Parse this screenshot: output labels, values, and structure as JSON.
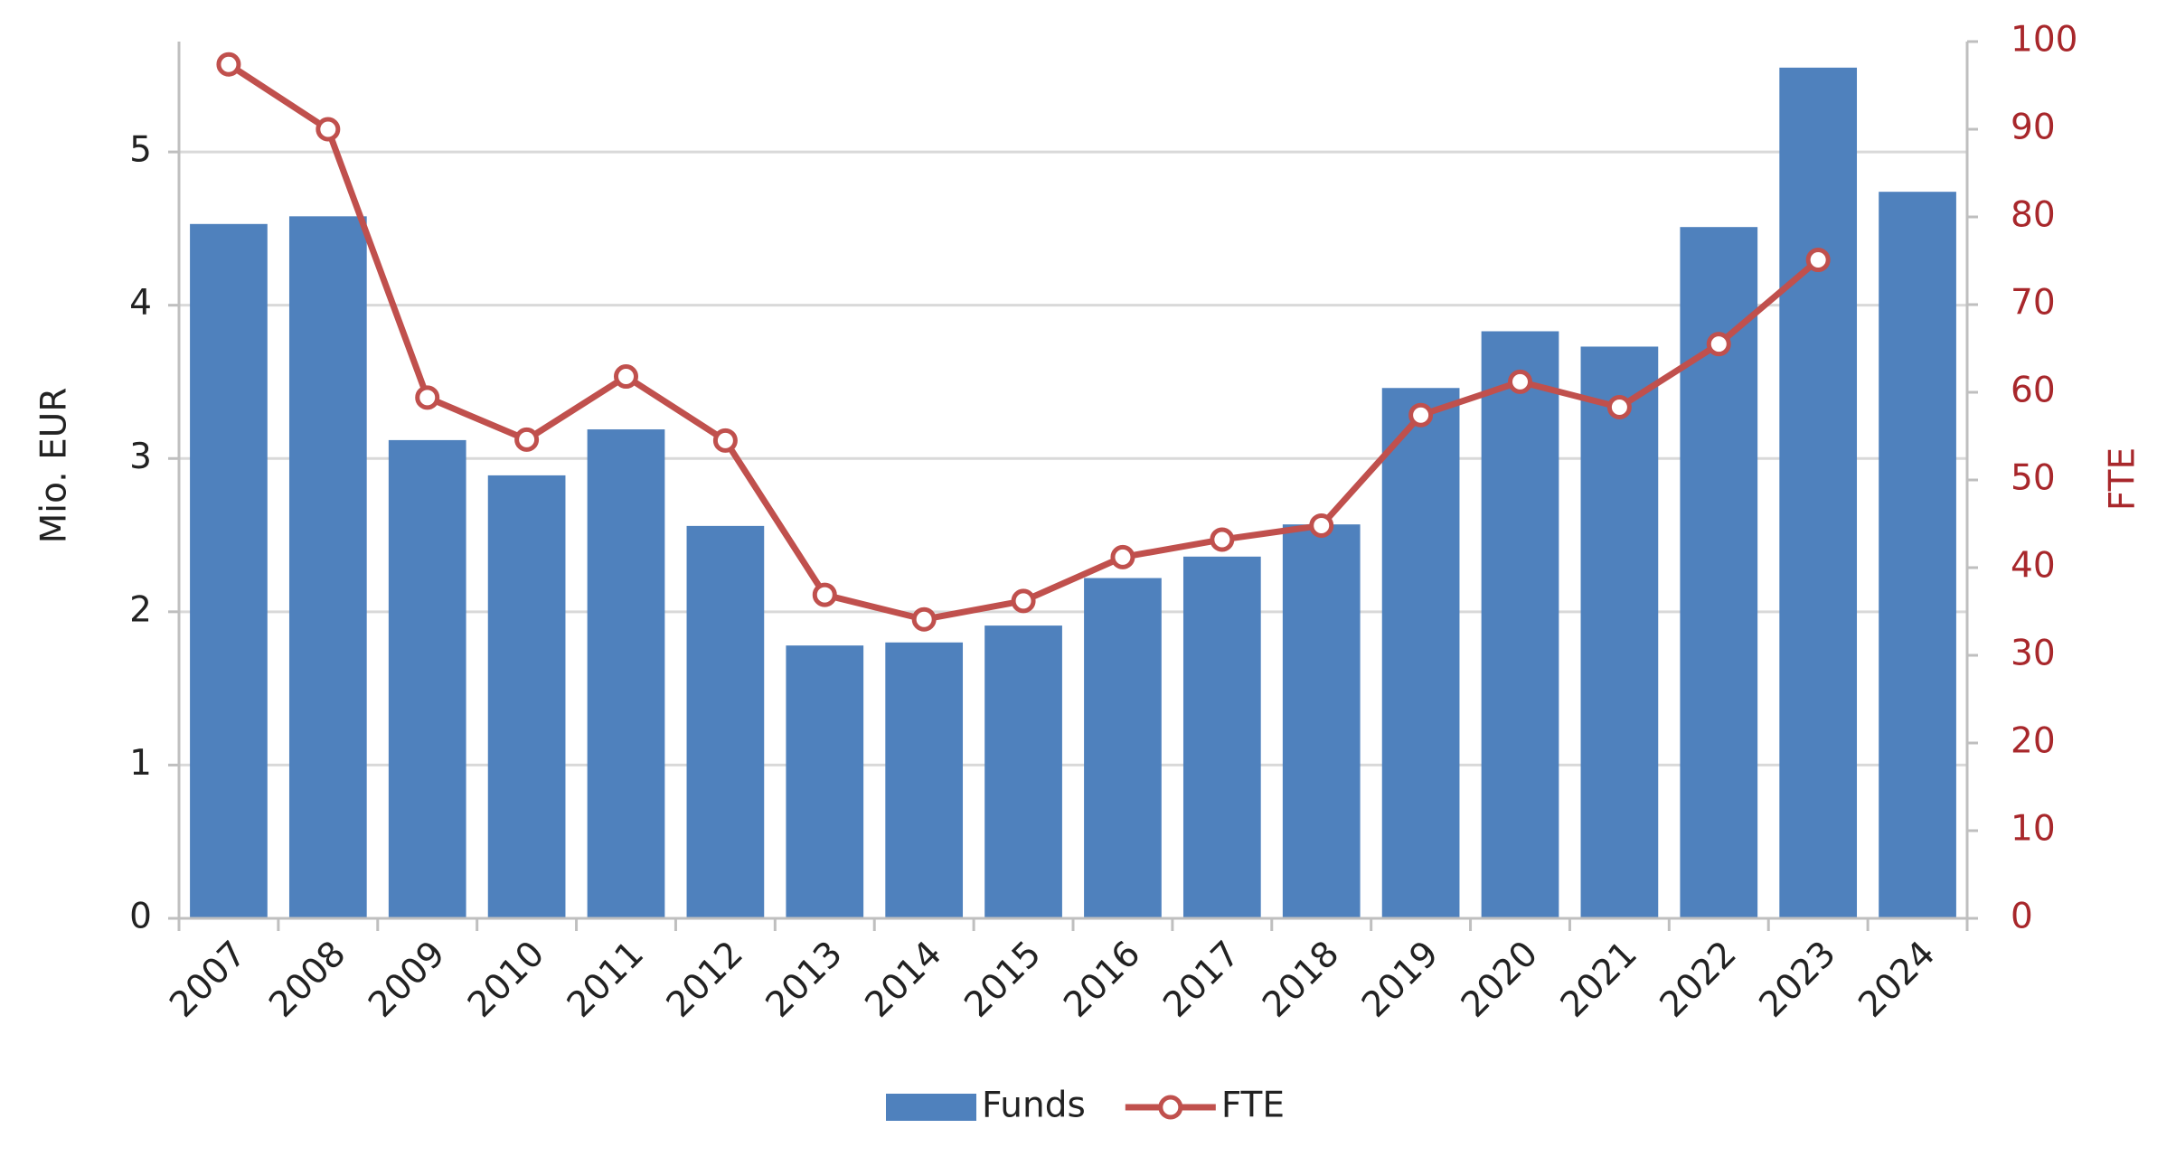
{
  "chart_data": {
    "type": "bar-line",
    "categories": [
      "2007",
      "2008",
      "2009",
      "2010",
      "2011",
      "2012",
      "2013",
      "2014",
      "2015",
      "2016",
      "2017",
      "2018",
      "2019",
      "2020",
      "2021",
      "2022",
      "2023",
      "2024"
    ],
    "series": [
      {
        "name": "Funds",
        "type": "bar",
        "color": "#4f81bd",
        "values": [
          4.53,
          4.58,
          3.12,
          2.89,
          3.19,
          2.56,
          1.78,
          1.8,
          1.91,
          2.22,
          2.36,
          2.57,
          3.46,
          3.83,
          3.73,
          4.51,
          5.55,
          4.74
        ]
      },
      {
        "name": "FTE",
        "type": "line",
        "axis": "y2",
        "color": "#c0504d",
        "values": [
          97.4,
          90.0,
          59.4,
          54.6,
          61.8,
          54.5,
          36.9,
          34.1,
          36.2,
          41.2,
          43.2,
          44.8,
          57.4,
          61.2,
          58.3,
          65.5,
          75.1,
          null
        ]
      }
    ],
    "ylabel": "Mio. EUR",
    "y2label": "FTE",
    "ylim": [
      0,
      5.72
    ],
    "yticks": [
      0,
      1,
      2,
      3,
      4,
      5
    ],
    "y2lim": [
      0,
      100
    ],
    "y2ticks": [
      0,
      10,
      20,
      30,
      40,
      50,
      60,
      70,
      80,
      90,
      100
    ],
    "grid": true,
    "legend": "bottom"
  }
}
